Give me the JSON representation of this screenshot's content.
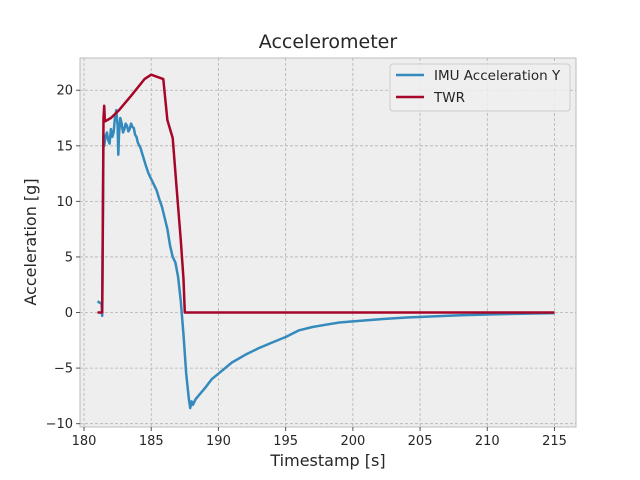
{
  "chart_data": {
    "type": "line",
    "title": "Accelerometer",
    "xlabel": "Timestamp [s]",
    "ylabel": "Acceleration [g]",
    "xlim": [
      179.7,
      216.6
    ],
    "ylim": [
      -10.3,
      22.9
    ],
    "xticks": [
      180,
      185,
      190,
      195,
      200,
      205,
      210,
      215
    ],
    "yticks": [
      -10,
      -5,
      0,
      5,
      10,
      15,
      20
    ],
    "ytick_labels": [
      "−10",
      "−5",
      "0",
      "5",
      "10",
      "15",
      "20"
    ],
    "grid": true,
    "legend": "top-right",
    "series": [
      {
        "name": "IMU Acceleration Y",
        "color": "#348abd",
        "x": [
          181.0,
          181.3,
          181.35,
          181.4,
          181.45,
          181.5,
          181.6,
          181.7,
          181.8,
          181.9,
          182.0,
          182.1,
          182.2,
          182.3,
          182.4,
          182.5,
          182.55,
          182.6,
          182.7,
          182.8,
          182.9,
          183.0,
          183.1,
          183.2,
          183.3,
          183.4,
          183.5,
          183.6,
          183.7,
          183.8,
          183.9,
          184.0,
          184.2,
          184.4,
          184.6,
          184.8,
          185.0,
          185.2,
          185.4,
          185.6,
          185.8,
          186.0,
          186.2,
          186.4,
          186.6,
          186.8,
          187.0,
          187.2,
          187.4,
          187.6,
          187.8,
          187.9,
          188.0,
          188.1,
          188.3,
          188.5,
          189.0,
          189.5,
          190.0,
          191.0,
          192.0,
          193.0,
          194.0,
          195.0,
          196.0,
          197.0,
          198.0,
          199.0,
          200.0,
          202.0,
          204.0,
          206.0,
          208.0,
          210.0,
          212.0,
          215.0
        ],
        "y": [
          1.0,
          0.8,
          -0.3,
          8.0,
          16.0,
          15.0,
          15.8,
          16.2,
          15.5,
          15.2,
          16.5,
          15.8,
          16.2,
          17.5,
          18.2,
          16.8,
          14.2,
          16.0,
          17.5,
          17.0,
          16.2,
          16.5,
          17.0,
          16.8,
          16.3,
          16.5,
          17.0,
          16.7,
          16.6,
          16.0,
          15.8,
          15.3,
          14.8,
          14.0,
          13.2,
          12.5,
          12.0,
          11.5,
          11.0,
          10.2,
          9.5,
          8.5,
          7.5,
          6.0,
          5.0,
          4.5,
          3.2,
          1.0,
          -2.0,
          -5.5,
          -7.8,
          -8.6,
          -8.0,
          -8.3,
          -7.8,
          -7.5,
          -6.8,
          -6.0,
          -5.5,
          -4.5,
          -3.8,
          -3.2,
          -2.7,
          -2.2,
          -1.6,
          -1.3,
          -1.1,
          -0.9,
          -0.8,
          -0.6,
          -0.45,
          -0.35,
          -0.25,
          -0.18,
          -0.12,
          -0.05
        ]
      },
      {
        "name": "TWR",
        "color": "#a60628",
        "x": [
          181.0,
          181.35,
          181.45,
          181.5,
          181.55,
          182.0,
          182.6,
          183.5,
          184.5,
          185.0,
          185.9,
          186.2,
          186.6,
          186.9,
          187.2,
          187.4,
          187.5,
          188.0,
          215.0
        ],
        "y": [
          0.0,
          0.0,
          17.5,
          18.6,
          17.2,
          17.5,
          18.2,
          19.5,
          21.0,
          21.4,
          21.0,
          17.3,
          15.7,
          11.0,
          6.5,
          3.0,
          0.0,
          0.0,
          0.0
        ]
      }
    ]
  }
}
